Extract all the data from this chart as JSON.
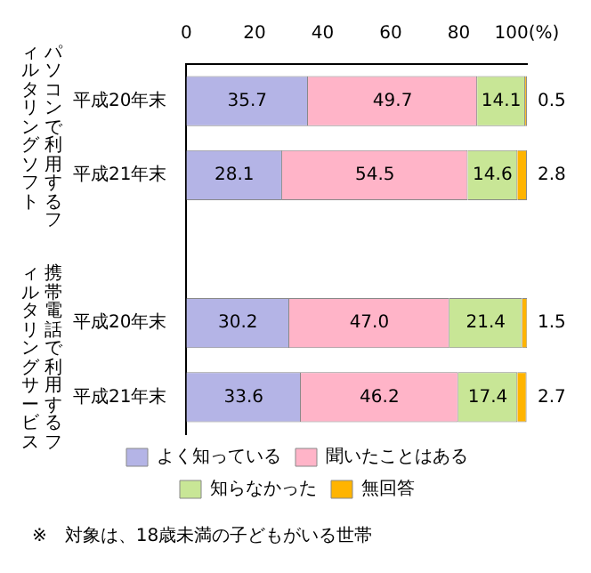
{
  "chart_data": {
    "type": "bar",
    "orientation": "horizontal",
    "stacked": true,
    "categories": [
      "平成20年末",
      "平成21年末",
      null,
      "平成20年末",
      "平成21年末"
    ],
    "series": [
      {
        "name": "よく知っている",
        "color": "#b4b4e6",
        "values": [
          35.7,
          28.1,
          null,
          30.2,
          33.6
        ],
        "value_labels": [
          "35.7",
          "28.1",
          null,
          "30.2",
          "33.6"
        ]
      },
      {
        "name": "聞いたことはある",
        "color": "#ffb4c8",
        "values": [
          49.7,
          54.5,
          null,
          47.0,
          46.2
        ],
        "value_labels": [
          "49.7",
          "54.5",
          null,
          "47.0",
          "46.2"
        ]
      },
      {
        "name": "知らなかった",
        "color": "#c8e696",
        "values": [
          14.1,
          14.6,
          null,
          21.4,
          17.4
        ],
        "value_labels": [
          "14.1",
          "14.6",
          null,
          "21.4",
          "17.4"
        ]
      },
      {
        "name": "無回答",
        "color": "#ffb400",
        "values": [
          0.5,
          2.8,
          null,
          1.5,
          2.7
        ],
        "value_labels": [
          "0.5",
          "2.8",
          null,
          "1.5",
          "2.7"
        ]
      }
    ],
    "xlim": [
      0,
      100
    ],
    "xticks": [
      0,
      20,
      40,
      60,
      80,
      {
        "value": 100,
        "label": "100(%)"
      }
    ],
    "grid": false,
    "legend": "bottom",
    "annotations": [
      "パソコンで利用するフィルタリングソフト",
      "携帯電話で利用するフィルタリングサービス",
      "※　対象は、18歳未満の子どもがいる世帯"
    ]
  }
}
